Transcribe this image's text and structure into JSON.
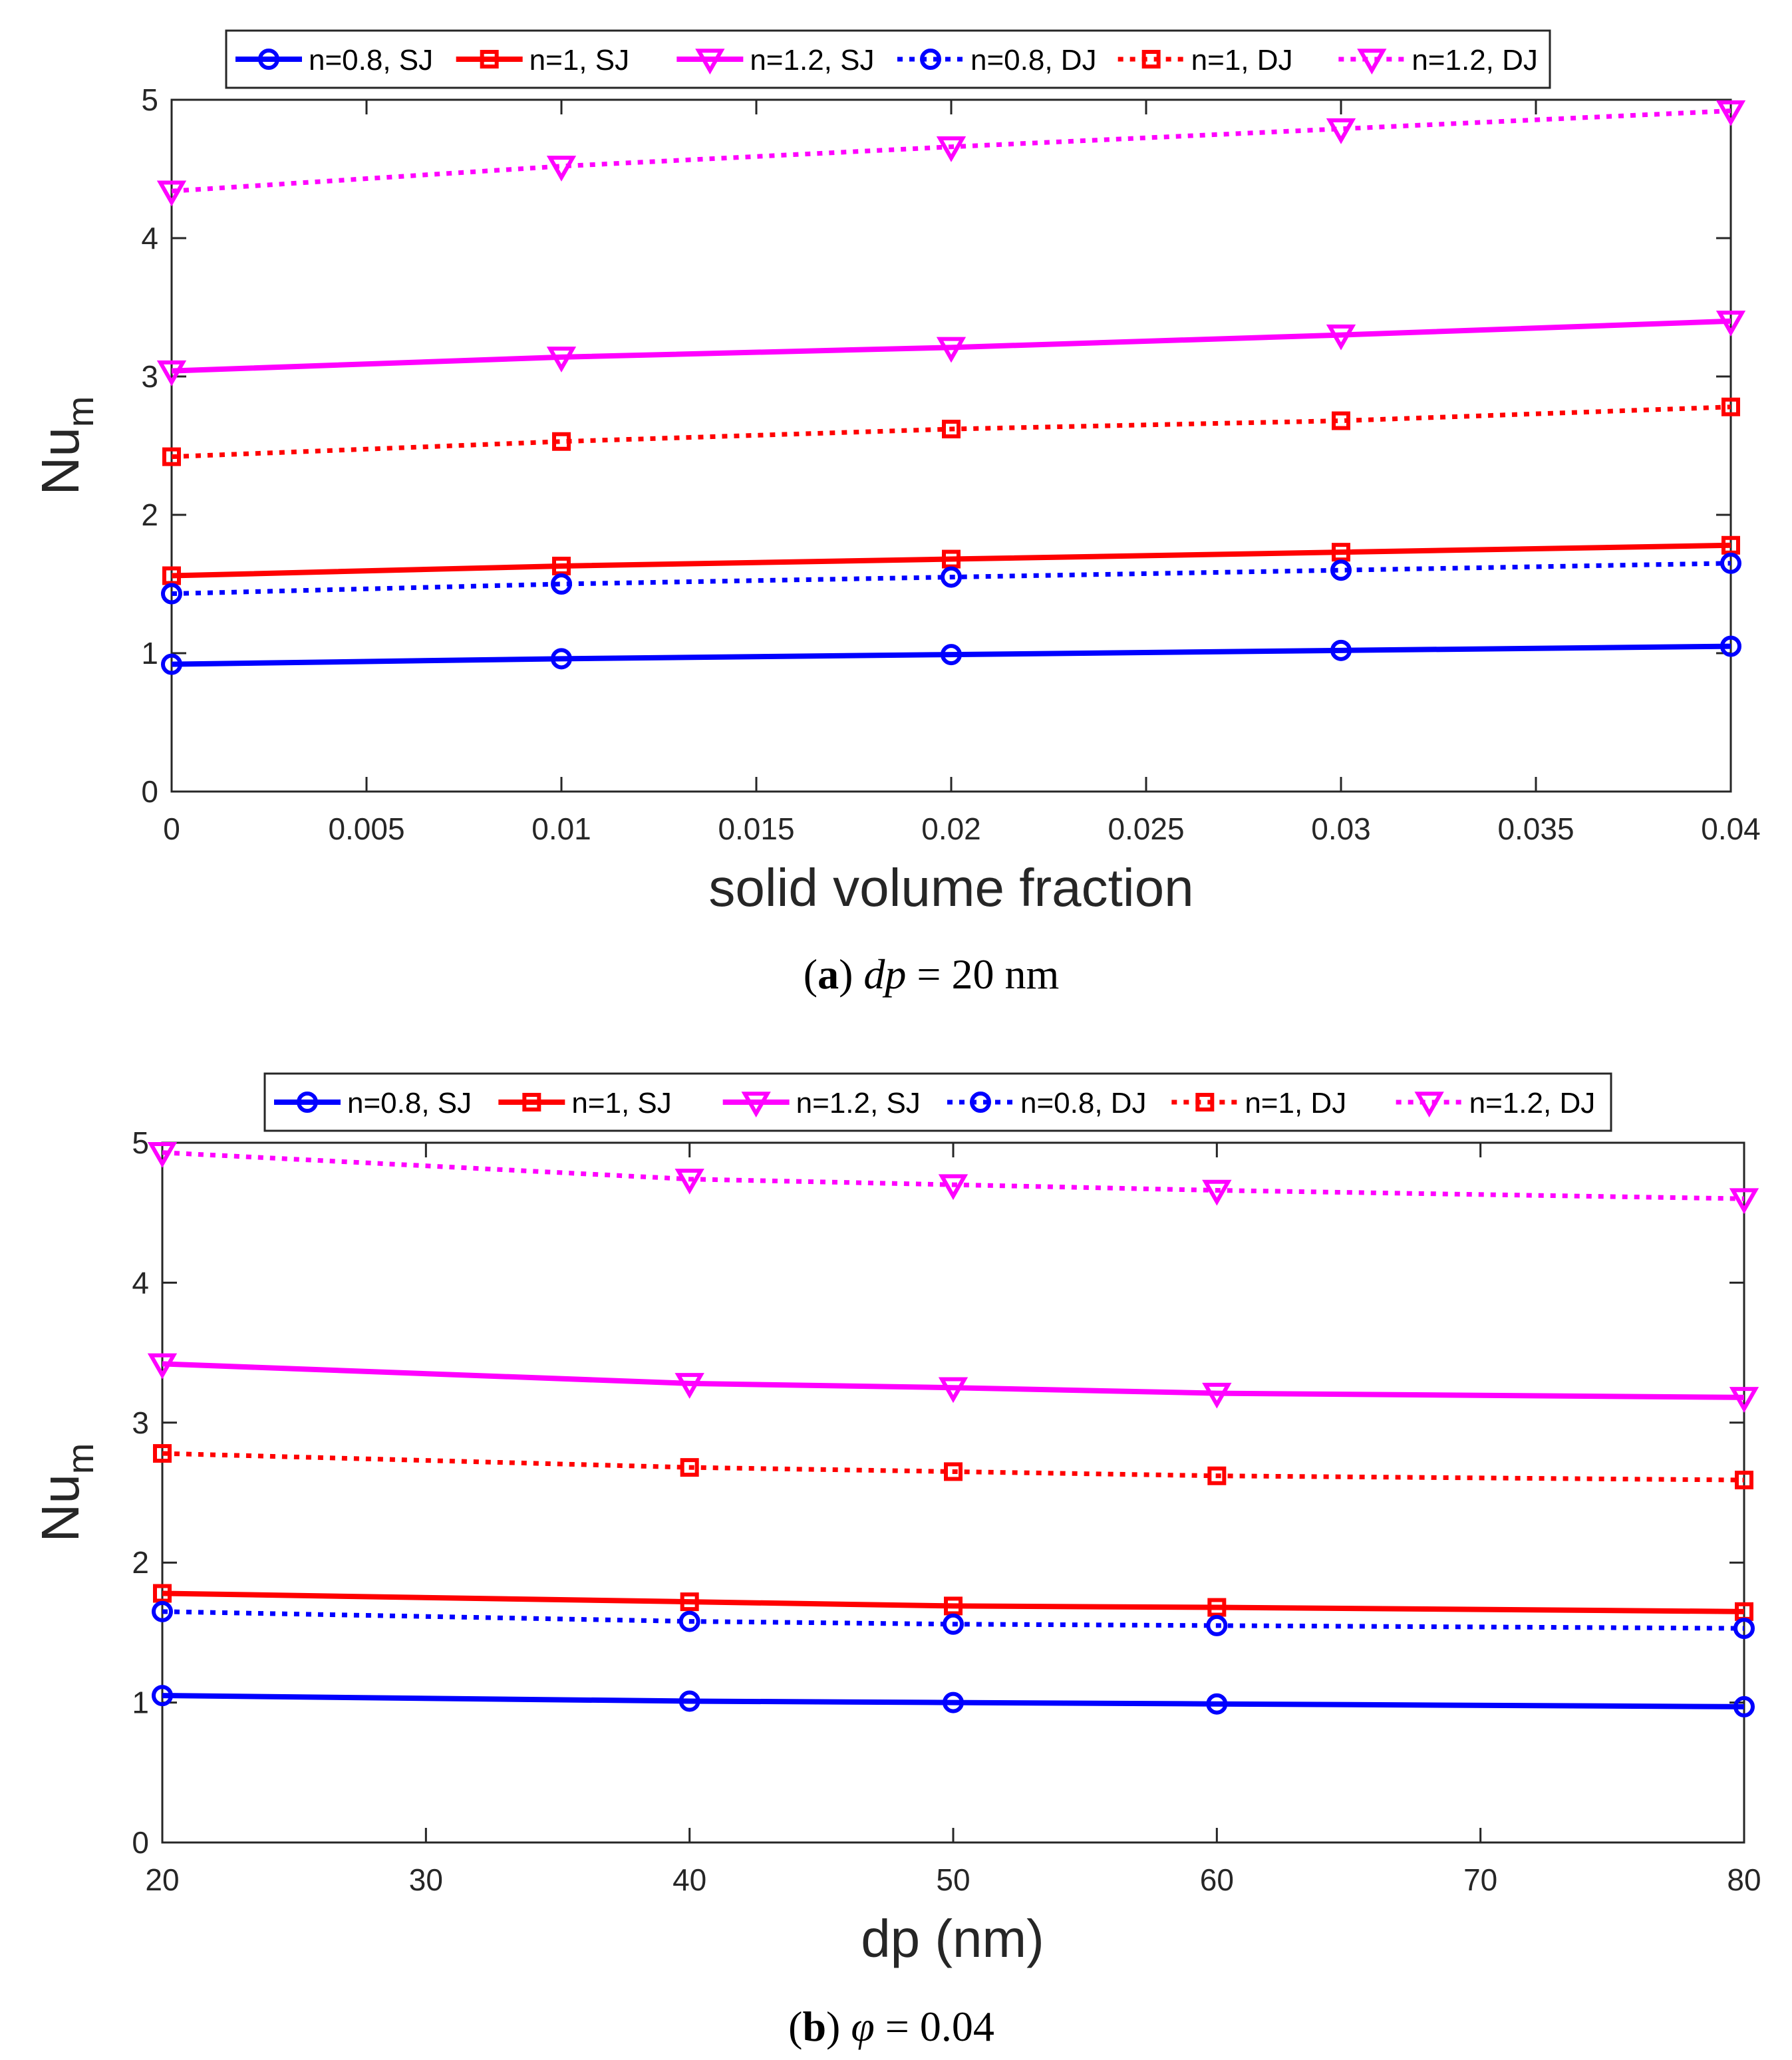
{
  "colors": {
    "blue": "#0000ff",
    "red": "#ff0000",
    "magenta": "#ff00ff",
    "axis": "#262626"
  },
  "captions": [
    {
      "letter": "a",
      "open": "(",
      "close": ")",
      "var": "dp",
      "rest": " = 20 nm"
    },
    {
      "letter": "b",
      "open": "(",
      "close": ")",
      "var": "φ",
      "rest": " = 0.04"
    }
  ],
  "chart_data": [
    {
      "type": "line",
      "title": "",
      "xlabel": "solid volume fraction",
      "ylabel_main": "Nu",
      "ylabel_sub": "m",
      "xlim": [
        0,
        0.04
      ],
      "ylim": [
        0,
        5
      ],
      "xticks": [
        0,
        0.005,
        0.01,
        0.015,
        0.02,
        0.025,
        0.03,
        0.035,
        0.04
      ],
      "xtick_labels": [
        "0",
        "0.005",
        "0.01",
        "0.015",
        "0.02",
        "0.025",
        "0.03",
        "0.035",
        "0.04"
      ],
      "yticks": [
        0,
        1,
        2,
        3,
        4,
        5
      ],
      "ytick_labels": [
        "0",
        "1",
        "2",
        "3",
        "4",
        "5"
      ],
      "x": [
        0,
        0.01,
        0.02,
        0.03,
        0.04
      ],
      "legend_position": "top",
      "series": [
        {
          "name": "n=0.8, SJ",
          "color": "blue",
          "marker": "circle",
          "dash": "solid",
          "values": [
            0.92,
            0.96,
            0.99,
            1.02,
            1.05
          ]
        },
        {
          "name": "n=1, SJ",
          "color": "red",
          "marker": "square",
          "dash": "solid",
          "values": [
            1.56,
            1.63,
            1.68,
            1.73,
            1.78
          ]
        },
        {
          "name": "n=1.2, SJ",
          "color": "magenta",
          "marker": "triangle-down",
          "dash": "solid",
          "values": [
            3.04,
            3.14,
            3.21,
            3.3,
            3.4
          ]
        },
        {
          "name": "n=0.8, DJ",
          "color": "blue",
          "marker": "circle",
          "dash": "dotted",
          "values": [
            1.43,
            1.5,
            1.55,
            1.6,
            1.65
          ]
        },
        {
          "name": "n=1, DJ",
          "color": "red",
          "marker": "square",
          "dash": "dotted",
          "values": [
            2.42,
            2.53,
            2.62,
            2.68,
            2.78
          ]
        },
        {
          "name": "n=1.2, DJ",
          "color": "magenta",
          "marker": "triangle-down",
          "dash": "dotted",
          "values": [
            4.34,
            4.52,
            4.66,
            4.79,
            4.92
          ]
        }
      ]
    },
    {
      "type": "line",
      "title": "",
      "xlabel": "dp (nm)",
      "ylabel_main": "Nu",
      "ylabel_sub": "m",
      "xlim": [
        20,
        80
      ],
      "ylim": [
        0,
        5
      ],
      "xticks": [
        20,
        30,
        40,
        50,
        60,
        70,
        80
      ],
      "xtick_labels": [
        "20",
        "30",
        "40",
        "50",
        "60",
        "70",
        "80"
      ],
      "yticks": [
        0,
        1,
        2,
        3,
        4,
        5
      ],
      "ytick_labels": [
        "0",
        "1",
        "2",
        "3",
        "4",
        "5"
      ],
      "x": [
        20,
        40,
        50,
        60,
        80
      ],
      "legend_position": "top",
      "series": [
        {
          "name": "n=0.8, SJ",
          "color": "blue",
          "marker": "circle",
          "dash": "solid",
          "values": [
            1.05,
            1.01,
            1.0,
            0.99,
            0.97
          ]
        },
        {
          "name": "n=1, SJ",
          "color": "red",
          "marker": "square",
          "dash": "solid",
          "values": [
            1.78,
            1.72,
            1.69,
            1.68,
            1.65
          ]
        },
        {
          "name": "n=1.2, SJ",
          "color": "magenta",
          "marker": "triangle-down",
          "dash": "solid",
          "values": [
            3.42,
            3.28,
            3.25,
            3.21,
            3.18
          ]
        },
        {
          "name": "n=0.8, DJ",
          "color": "blue",
          "marker": "circle",
          "dash": "dotted",
          "values": [
            1.65,
            1.58,
            1.56,
            1.55,
            1.53
          ]
        },
        {
          "name": "n=1, DJ",
          "color": "red",
          "marker": "square",
          "dash": "dotted",
          "values": [
            2.78,
            2.68,
            2.65,
            2.62,
            2.59
          ]
        },
        {
          "name": "n=1.2, DJ",
          "color": "magenta",
          "marker": "triangle-down",
          "dash": "dotted",
          "values": [
            4.93,
            4.74,
            4.7,
            4.66,
            4.6
          ]
        }
      ]
    }
  ]
}
